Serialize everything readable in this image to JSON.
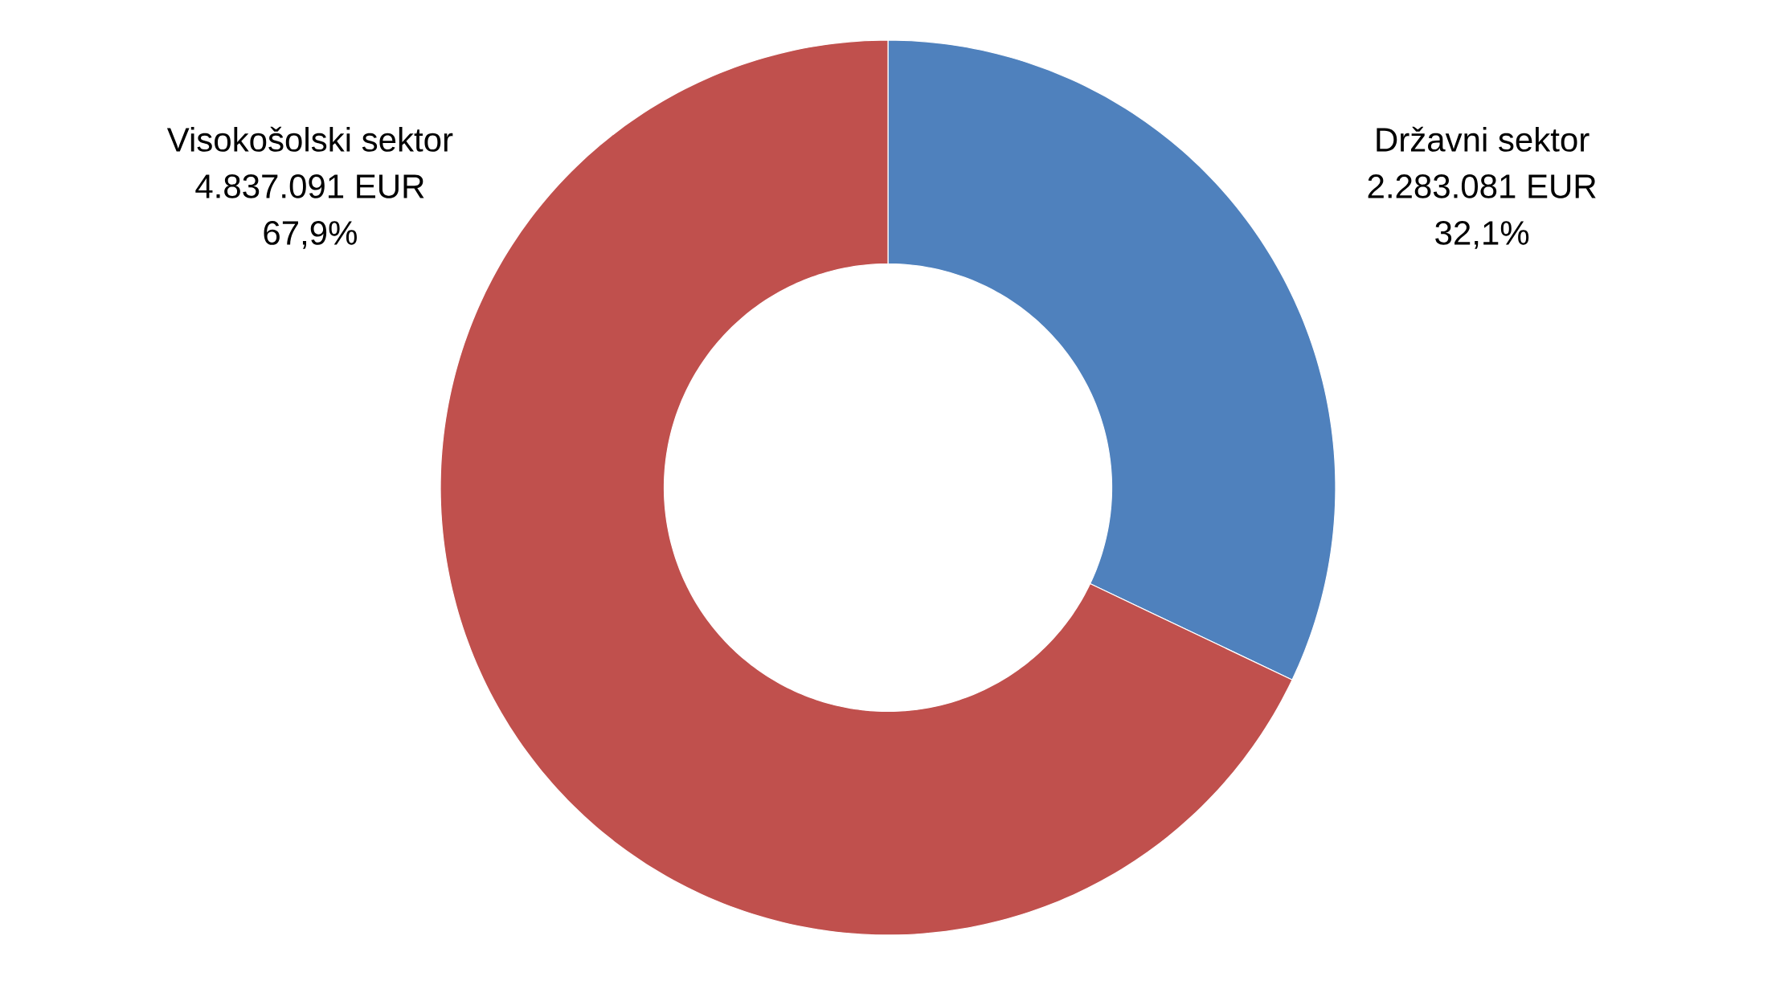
{
  "chart_data": {
    "type": "donut",
    "categories": [
      "Državni sektor",
      "Visokošolski sektor"
    ],
    "values": [
      2283081,
      4837091
    ],
    "colors": [
      "#4f81bd",
      "#c0504d"
    ],
    "value_labels": [
      "2.283.081 EUR",
      "4.837.091 EUR"
    ],
    "annotations": [
      "32,1%",
      "67,9%"
    ]
  }
}
